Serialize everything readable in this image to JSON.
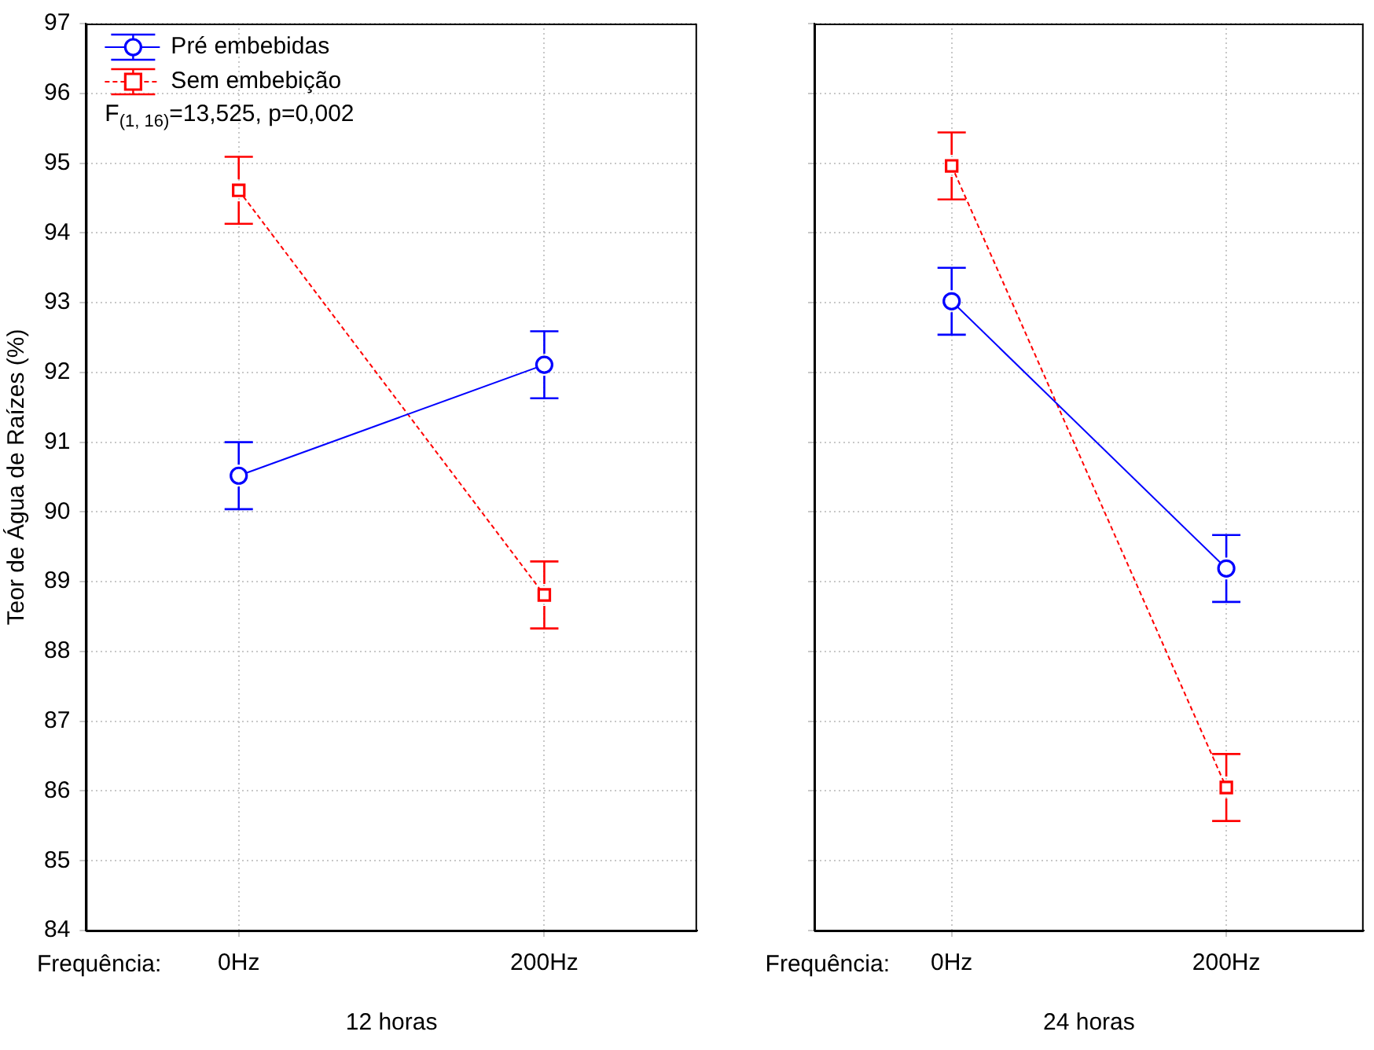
{
  "chart_data": [
    {
      "type": "line",
      "xlabel": "12 horas",
      "ylabel": "Teor de Água de Raízes (%)",
      "categories": [
        "0Hz",
        "200Hz"
      ],
      "series": [
        {
          "name": "Pré embebidas",
          "color": "#0000ff",
          "values": [
            90.52,
            92.11
          ],
          "errors": [
            0.48,
            0.48
          ],
          "marker": "circle",
          "line_style": "solid"
        },
        {
          "name": "Sem embebição",
          "color": "#ff0000",
          "values": [
            94.61,
            88.81
          ],
          "errors": [
            0.48,
            0.48
          ],
          "marker": "square",
          "line_style": "dashed"
        }
      ],
      "ylim": [
        84,
        97
      ],
      "yticks": [
        84,
        85,
        86,
        87,
        88,
        89,
        90,
        91,
        92,
        93,
        94,
        95,
        96,
        97
      ],
      "grid": true,
      "legend": "top left",
      "annotations": [
        "Frequência:",
        "F$_{(1, 16)}$=13,525, p=0,002"
      ]
    },
    {
      "type": "line",
      "xlabel": "24 horas",
      "categories": [
        "0Hz",
        "200Hz"
      ],
      "series": [
        {
          "color": "#0000ff",
          "values": [
            93.02,
            89.19
          ],
          "errors": [
            0.48,
            0.48
          ],
          "marker": "circle",
          "line_style": "solid"
        },
        {
          "color": "#ff0000",
          "values": [
            94.96,
            86.05
          ],
          "errors": [
            0.48,
            0.48
          ],
          "marker": "square",
          "line_style": "dashed"
        }
      ],
      "ylim": [
        84,
        97
      ],
      "yticks": [
        84,
        85,
        86,
        87,
        88,
        89,
        90,
        91,
        92,
        93,
        94,
        95,
        96,
        97
      ],
      "grid": true,
      "tick_labels": "x",
      "annotations": [
        "Frequência:"
      ]
    }
  ]
}
